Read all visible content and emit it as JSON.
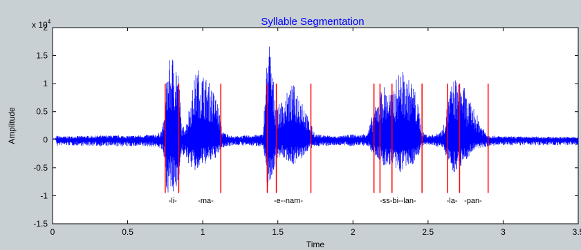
{
  "chart_data": {
    "type": "line",
    "title": "Syllable Segmentation",
    "xlabel": "Time",
    "ylabel": "Amplitude",
    "y_exponent_label": "x 10",
    "y_exponent_power": "4",
    "xlim": [
      0,
      3.5
    ],
    "ylim": [
      -1.5,
      2
    ],
    "grid": false,
    "x_ticks": [
      0,
      0.5,
      1,
      1.5,
      2,
      2.5,
      3,
      3.5
    ],
    "x_tick_labels": [
      "0",
      "0.5",
      "1",
      "1.5",
      "2",
      "2.5",
      "3",
      "3.5"
    ],
    "y_ticks": [
      -1.5,
      -1,
      -0.5,
      0,
      0.5,
      1,
      1.5,
      2
    ],
    "y_tick_labels": [
      "-1.5",
      "-1",
      "-0.5",
      "0",
      "0.5",
      "1",
      "1.5",
      "2"
    ],
    "waveform_color": "#0000ff",
    "boundary_color": "#ff0000",
    "waveform_envelope": {
      "time": [
        0,
        0.02,
        0.03,
        0.05,
        0.4,
        0.5,
        0.7,
        0.73,
        0.75,
        0.76,
        0.79,
        0.8,
        0.82,
        0.84,
        0.86,
        0.89,
        0.92,
        0.96,
        1.0,
        1.05,
        1.1,
        1.13,
        1.2,
        1.4,
        1.43,
        1.44,
        1.46,
        1.48,
        1.5,
        1.55,
        1.6,
        1.66,
        1.7,
        1.75,
        1.9,
        2.0,
        2.05,
        2.1,
        2.13,
        2.17,
        2.2,
        2.25,
        2.28,
        2.3,
        2.33,
        2.36,
        2.4,
        2.44,
        2.46,
        2.5,
        2.55,
        2.6,
        2.65,
        2.68,
        2.7,
        2.73,
        2.76,
        2.8,
        2.85,
        2.9,
        3.0,
        3.5
      ],
      "upper": [
        0.03,
        0.03,
        0.08,
        0.06,
        0.08,
        0.07,
        0.1,
        0.2,
        0.5,
        1.25,
        1.5,
        1.52,
        1.55,
        1.2,
        0.2,
        0.3,
        0.75,
        1.3,
        1.2,
        1.0,
        0.7,
        0.15,
        0.06,
        0.1,
        1.6,
        1.9,
        1.35,
        0.85,
        0.6,
        0.8,
        1.0,
        0.8,
        0.4,
        0.1,
        0.06,
        0.1,
        0.08,
        0.15,
        0.45,
        0.75,
        1.0,
        0.85,
        1.0,
        1.2,
        1.25,
        1.1,
        1.05,
        0.55,
        0.15,
        0.08,
        0.1,
        0.2,
        0.95,
        1.15,
        1.0,
        1.05,
        0.75,
        0.6,
        0.3,
        0.08,
        0.06,
        0.05
      ],
      "lower": [
        0.03,
        0.03,
        -0.12,
        -0.1,
        -0.12,
        -0.12,
        -0.13,
        -0.2,
        -0.5,
        -0.95,
        -0.95,
        -1.05,
        -0.98,
        -0.7,
        -0.25,
        -0.35,
        -0.5,
        -0.6,
        -0.45,
        -0.4,
        -0.3,
        -0.15,
        -0.1,
        -0.12,
        -0.85,
        -0.9,
        -0.7,
        -0.5,
        -0.3,
        -0.35,
        -0.45,
        -0.35,
        -0.2,
        -0.12,
        -0.1,
        -0.12,
        -0.1,
        -0.12,
        -0.25,
        -0.35,
        -0.5,
        -0.45,
        -0.55,
        -0.65,
        -0.55,
        -0.5,
        -0.45,
        -0.25,
        -0.12,
        -0.1,
        -0.12,
        -0.15,
        -0.5,
        -0.6,
        -0.5,
        -0.45,
        -0.35,
        -0.2,
        -0.15,
        -0.12,
        -0.1,
        -0.1
      ]
    },
    "boundaries": [
      {
        "x": 0.75,
        "y_top": 1.0,
        "y_bottom": -0.95
      },
      {
        "x": 0.84,
        "y_top": 1.0,
        "y_bottom": -0.95
      },
      {
        "x": 1.12,
        "y_top": 1.0,
        "y_bottom": -0.95
      },
      {
        "x": 1.43,
        "y_top": 1.0,
        "y_bottom": -0.95
      },
      {
        "x": 1.49,
        "y_top": 1.0,
        "y_bottom": -0.95
      },
      {
        "x": 1.72,
        "y_top": 1.0,
        "y_bottom": -0.95
      },
      {
        "x": 2.14,
        "y_top": 1.0,
        "y_bottom": -0.95
      },
      {
        "x": 2.18,
        "y_top": 1.0,
        "y_bottom": -0.95
      },
      {
        "x": 2.26,
        "y_top": 1.0,
        "y_bottom": -0.95
      },
      {
        "x": 2.46,
        "y_top": 1.0,
        "y_bottom": -0.95
      },
      {
        "x": 2.63,
        "y_top": 1.0,
        "y_bottom": -0.95
      },
      {
        "x": 2.71,
        "y_top": 1.0,
        "y_bottom": -0.95
      },
      {
        "x": 2.9,
        "y_top": 1.0,
        "y_bottom": -0.95
      }
    ],
    "annotations": [
      {
        "text": "-li-",
        "x": 0.8,
        "y": -1.08
      },
      {
        "text": "-ma-",
        "x": 1.02,
        "y": -1.08
      },
      {
        "text": "-e--nam-",
        "x": 1.57,
        "y": -1.08
      },
      {
        "text": "-ss-bi--lan-",
        "x": 2.3,
        "y": -1.08
      },
      {
        "text": "-la-",
        "x": 2.66,
        "y": -1.08
      },
      {
        "text": "-pan-",
        "x": 2.8,
        "y": -1.08
      }
    ]
  }
}
